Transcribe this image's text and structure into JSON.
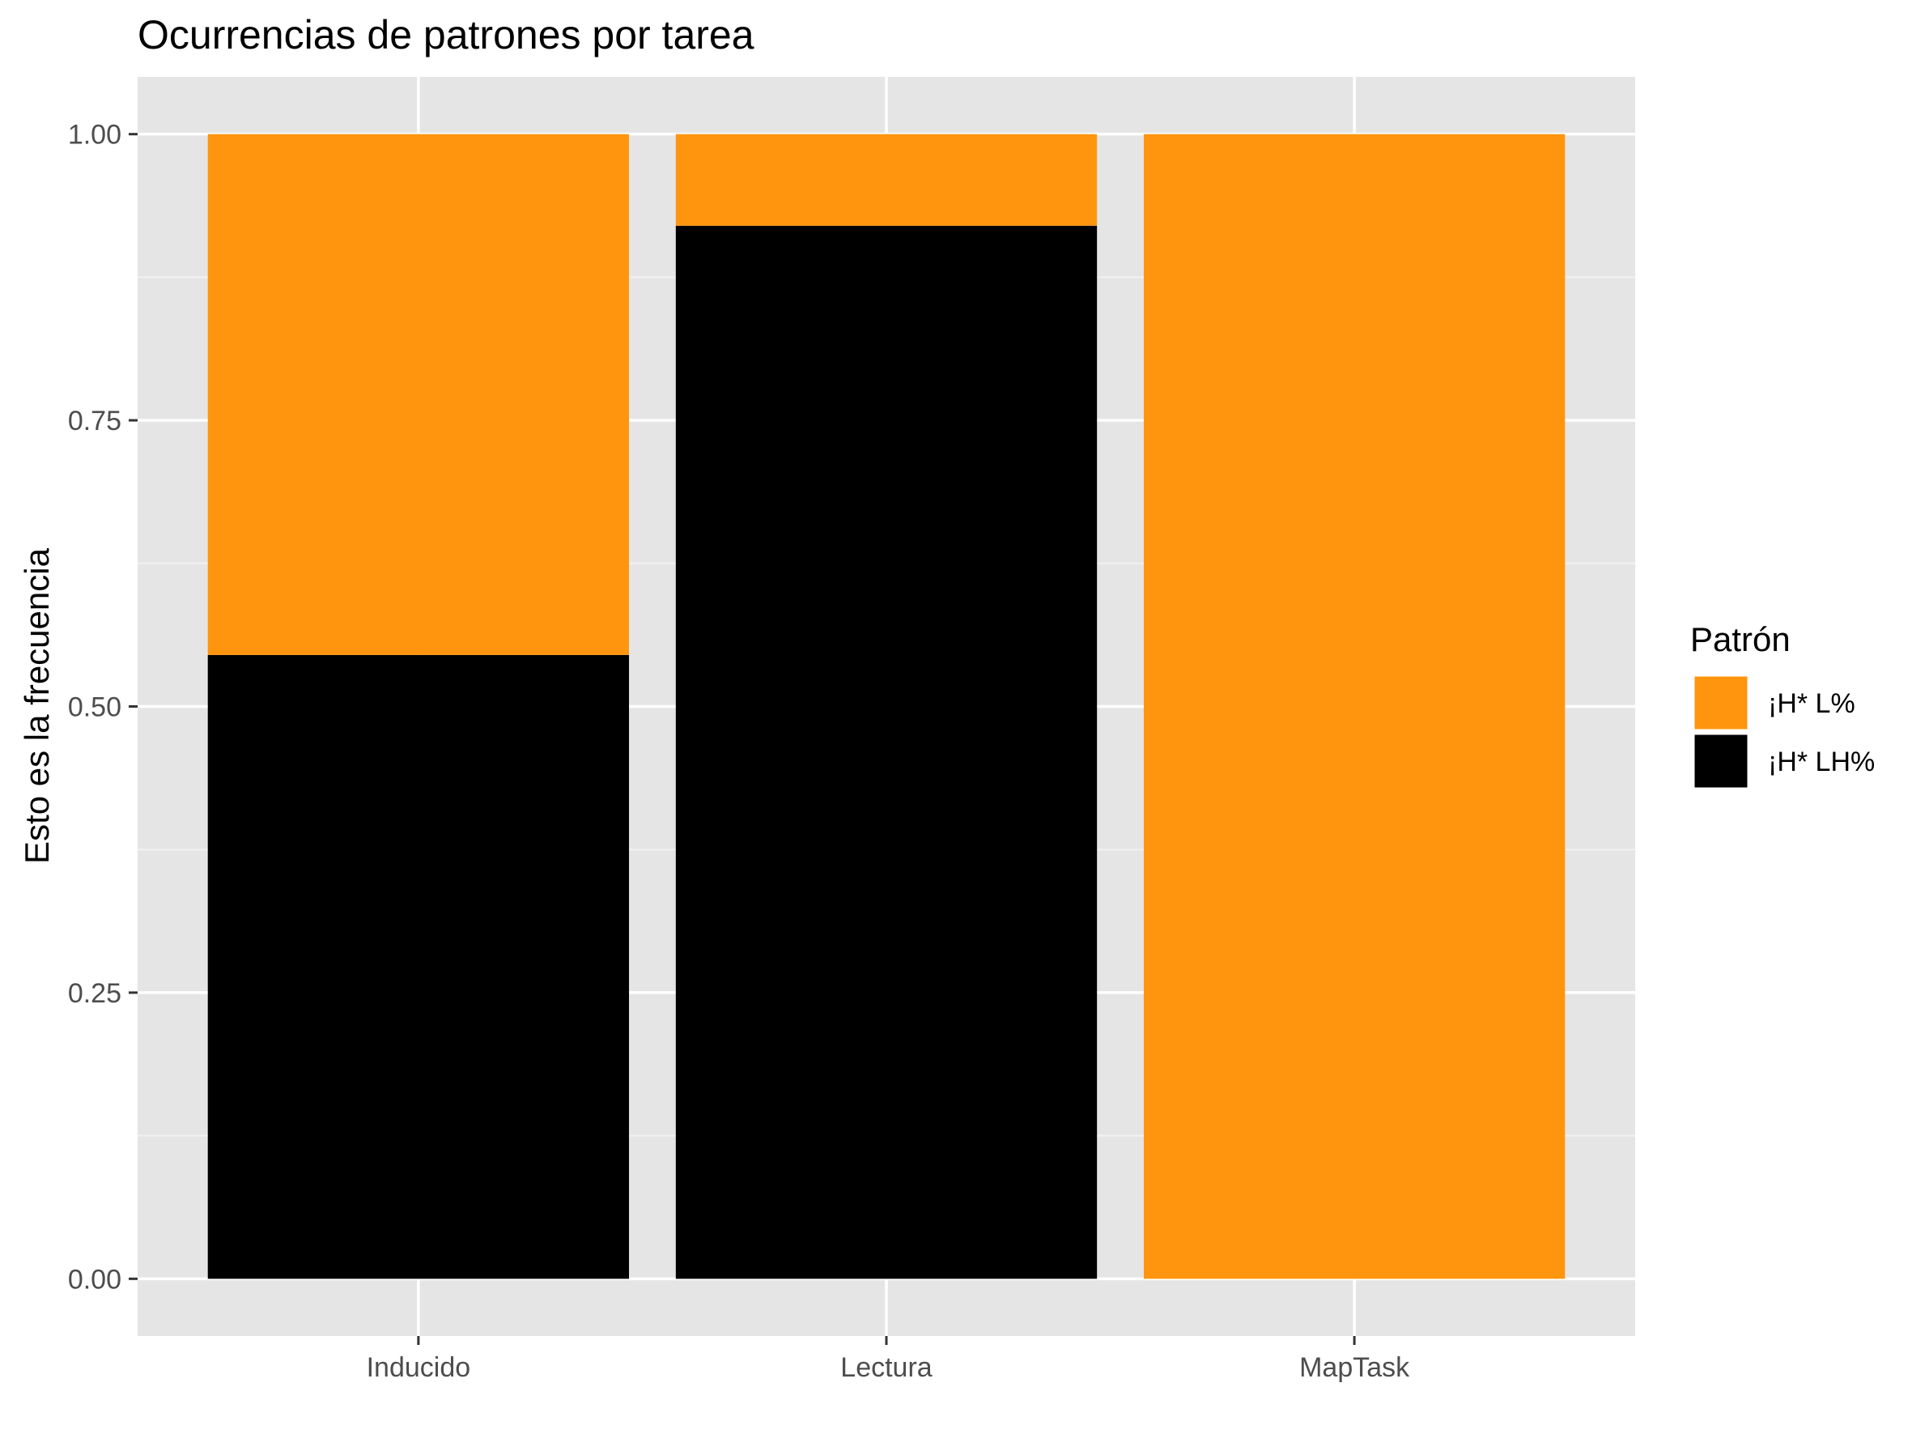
{
  "chart_data": {
    "type": "bar",
    "stacked": true,
    "title": "Ocurrencias de patrones por tarea",
    "xlabel": "",
    "ylabel": "Esto es la frecuencia",
    "categories": [
      "Inducido",
      "Lectura",
      "MapTask"
    ],
    "series": [
      {
        "name": "¡H* LH%",
        "color": "#000000",
        "values": [
          0.545,
          0.92,
          0.0
        ]
      },
      {
        "name": "¡H* L%",
        "color": "#FF950E",
        "values": [
          0.455,
          0.08,
          1.0
        ]
      }
    ],
    "ylim": [
      -0.05,
      1.05
    ],
    "yticks": [
      0.0,
      0.25,
      0.5,
      0.75,
      1.0
    ],
    "ytick_labels": [
      "0.00",
      "0.25",
      "0.50",
      "0.75",
      "1.00"
    ],
    "grid": true,
    "panel_background": "#E5E5E5",
    "legend": {
      "title": "Patrón",
      "position": "right",
      "entries": [
        "¡H* L%",
        "¡H* LH%"
      ]
    }
  }
}
